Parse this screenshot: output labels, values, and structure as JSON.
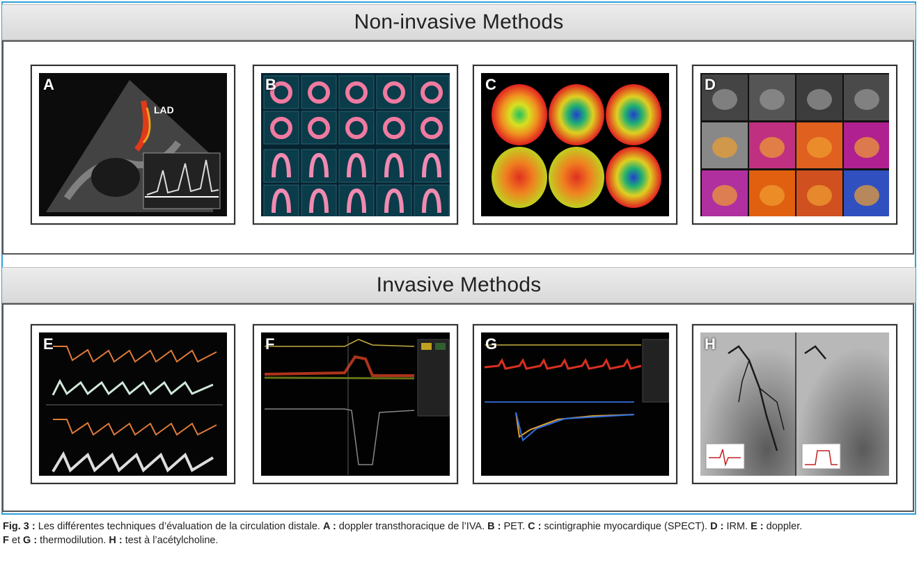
{
  "sections": {
    "noninvasive_title": "Non-invasive Methods",
    "invasive_title": "Invasive Methods"
  },
  "panels": {
    "A": {
      "letter": "A",
      "label": "LAD"
    },
    "B": {
      "letter": "B"
    },
    "C": {
      "letter": "C"
    },
    "D": {
      "letter": "D"
    },
    "E": {
      "letter": "E"
    },
    "F": {
      "letter": "F"
    },
    "G": {
      "letter": "G"
    },
    "H": {
      "letter": "H"
    }
  },
  "caption": {
    "fig": "Fig. 3 :",
    "t1": " Les différentes techniques d’évaluation de la circulation distale. ",
    "a": "A :",
    "t2": " doppler transthoracique de l’IVA. ",
    "b": "B :",
    "t3": " PET. ",
    "c": "C :",
    "t4": " scintigraphie myocardique (SPECT). ",
    "d": "D :",
    "t5": " IRM. ",
    "e": "E :",
    "t6": " doppler.",
    "f": "F",
    "t7": " et ",
    "g": "G :",
    "t8": " thermodilution. ",
    "h": "H :",
    "t9": " test à l’acétylcholine."
  },
  "colors": {
    "frame_border": "#2f9fd8",
    "header_bg": "#e0e0e0"
  }
}
